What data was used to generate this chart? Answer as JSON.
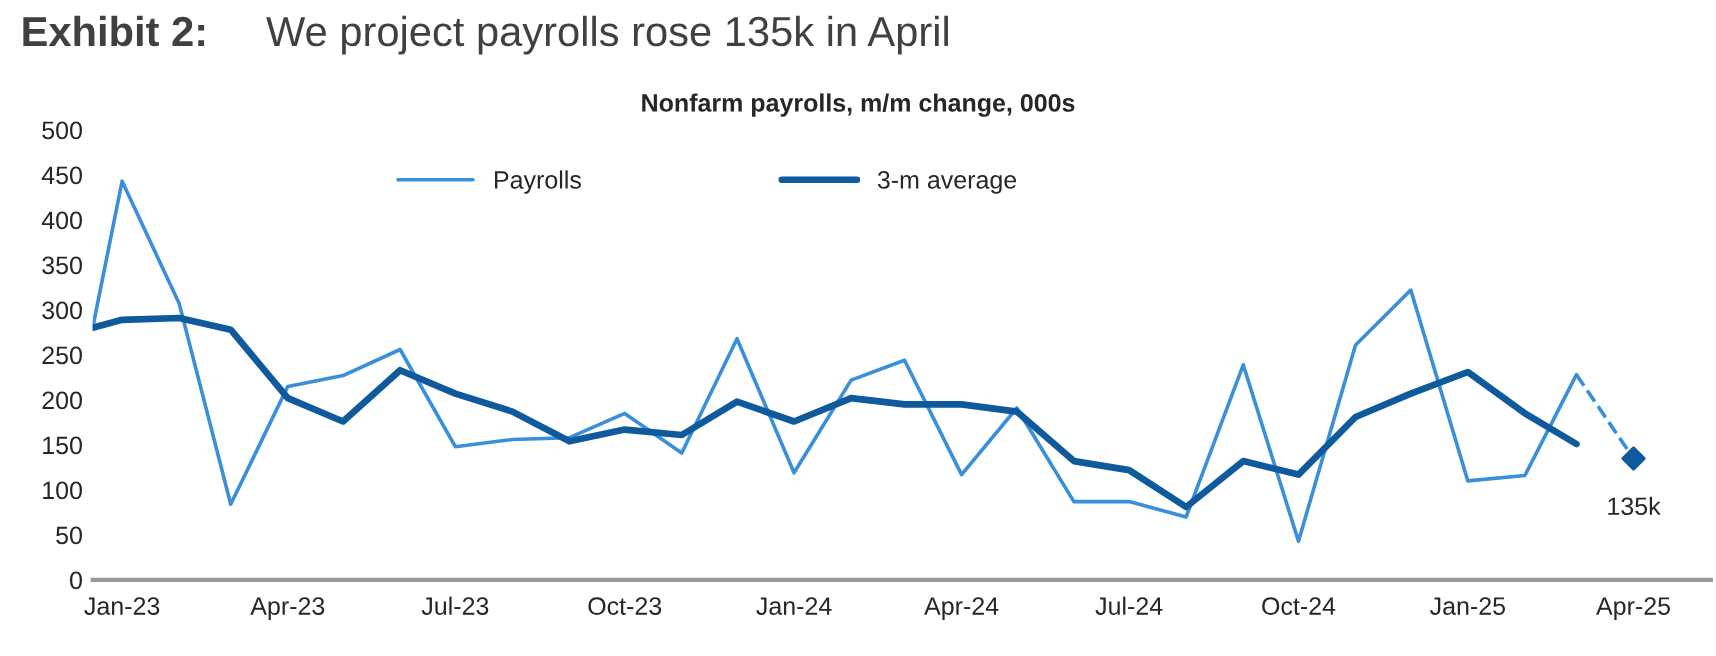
{
  "chart_data": {
    "type": "line",
    "title": "Exhibit 2:",
    "subtitle": "We project payrolls rose 135k in April",
    "annotations": [
      "Nonfarm payrolls, m/m change, 000s",
      {
        "text": "135k",
        "x": "2025-04",
        "y": 135
      }
    ],
    "x": [
      "2022-12-16",
      "2023-01",
      "2023-02",
      "2023-03",
      "2023-04",
      "2023-05",
      "2023-06",
      "2023-07",
      "2023-08",
      "2023-09",
      "2023-10",
      "2023-11",
      "2023-12",
      "2024-01",
      "2024-02",
      "2024-03",
      "2024-04",
      "2024-05",
      "2024-06",
      "2024-07",
      "2024-08",
      "2024-09",
      "2024-10",
      "2024-11",
      "2024-12",
      "2025-01",
      "2025-02",
      "2025-03"
    ],
    "series": [
      {
        "name": "Payrolls",
        "color": "#3a8fdb",
        "values": [
          280,
          443,
          307,
          84,
          215,
          227,
          256,
          148,
          156,
          158,
          185,
          141,
          268,
          119,
          222,
          244,
          117,
          191,
          87,
          87,
          70,
          239,
          43,
          261,
          322,
          110,
          116,
          228
        ]
      },
      {
        "name": "3-m average",
        "color": "#0f5a9c",
        "values": [
          280,
          289,
          291,
          278,
          202,
          176,
          233,
          207,
          187,
          154,
          167,
          161,
          198,
          176,
          202,
          195,
          195,
          187,
          132,
          122,
          81,
          132,
          117,
          181,
          207,
          231,
          185,
          151
        ]
      },
      {
        "color": "#3a8fdb",
        "x": [
          "2025-03",
          "2025-04"
        ],
        "values": [
          228,
          135
        ],
        "line_style": "dashed"
      },
      {
        "type": "scatter",
        "color": "#0f5a9c",
        "x": [
          "2025-04"
        ],
        "values": [
          135
        ],
        "marker": "diamond"
      }
    ],
    "xlim": [
      "2022-12-16",
      "2025-05-13"
    ],
    "xticks": [
      {
        "value": "2023-01",
        "label": "Jan-23"
      },
      {
        "value": "2023-04",
        "label": "Apr-23"
      },
      {
        "value": "2023-07",
        "label": "Jul-23"
      },
      {
        "value": "2023-10",
        "label": "Oct-23"
      },
      {
        "value": "2024-01",
        "label": "Jan-24"
      },
      {
        "value": "2024-04",
        "label": "Apr-24"
      },
      {
        "value": "2024-07",
        "label": "Jul-24"
      },
      {
        "value": "2024-10",
        "label": "Oct-24"
      },
      {
        "value": "2025-01",
        "label": "Jan-25"
      },
      {
        "value": "2025-04",
        "label": "Apr-25"
      }
    ],
    "ylim": [
      0,
      500
    ],
    "yticks": [
      0,
      50,
      100,
      150,
      200,
      250,
      300,
      350,
      400,
      450,
      500
    ],
    "grid": false,
    "legend": "top"
  }
}
